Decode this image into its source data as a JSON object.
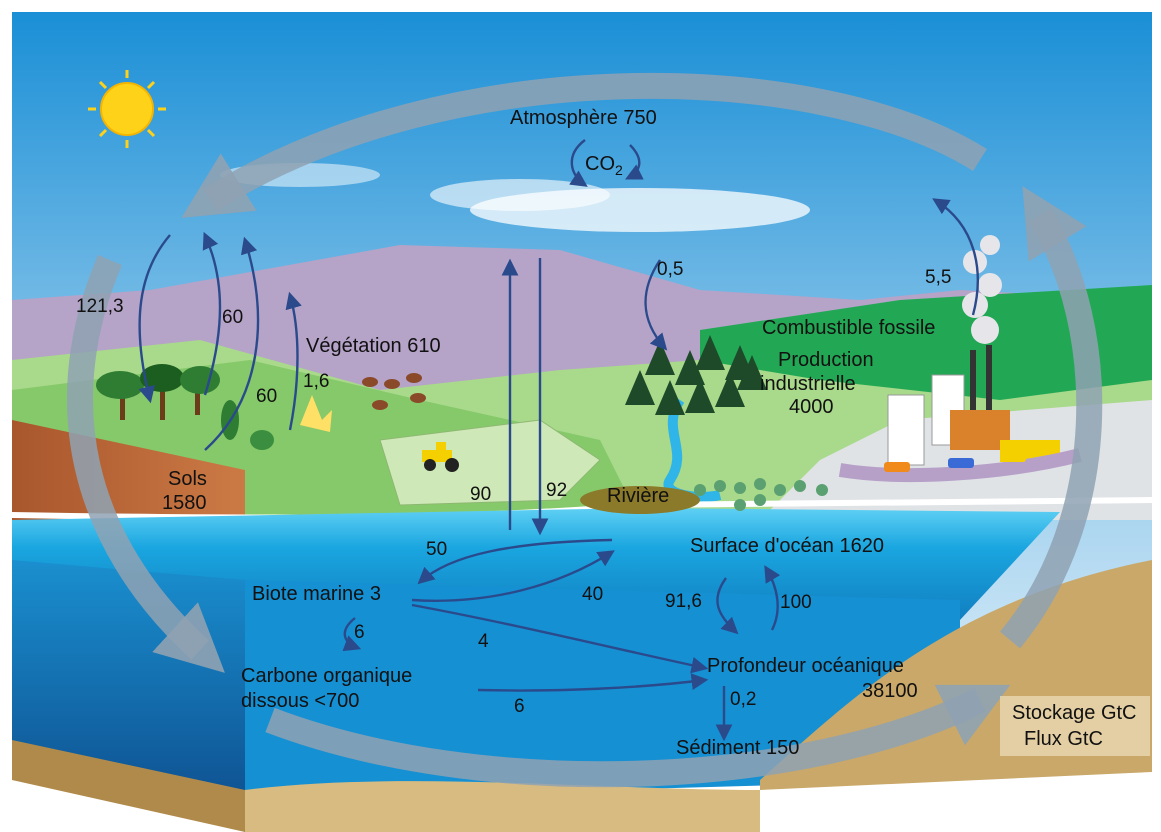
{
  "atmosphere": {
    "label": "Atmosphère 750",
    "co2": "CO",
    "co2_sub": "2"
  },
  "reservoirs": {
    "vegetation": "Végétation 610",
    "soils_line1": "Sols",
    "soils_line2": "1580",
    "fossil_fuel": "Combustible fossile",
    "industrial_line1": "Production",
    "industrial_line2": "industrielle",
    "industrial_line3": "4000",
    "river": "Rivière",
    "ocean_surface": "Surface d'océan 1620",
    "marine_biota": "Biote marine 3",
    "doc_line1": "Carbone organique",
    "doc_line2": "dissous <700",
    "deep_ocean_line1": "Profondeur océanique",
    "deep_ocean_line2": "38100",
    "sediment": "Sédiment 150"
  },
  "fluxes": {
    "f_121_3": "121,3",
    "f_60_top": "60",
    "f_60_bottom": "60",
    "f_1_6": "1,6",
    "f_90": "90",
    "f_92": "92",
    "f_0_5": "0,5",
    "f_5_5": "5,5",
    "f_50": "50",
    "f_40": "40",
    "f_6_left": "6",
    "f_4": "4",
    "f_6_bottom": "6",
    "f_91_6": "91,6",
    "f_100": "100",
    "f_0_2": "0,2"
  },
  "legend": {
    "line1": "Stockage GtC",
    "line2": "Flux GtC"
  },
  "colors": {
    "sky_top": "#1a8fd6",
    "ocean": "#1aa6e0",
    "flux_arrow": "#2a4a8c",
    "cycle_arrow": "#8fa2b3",
    "sediment": "#c9a86a"
  }
}
